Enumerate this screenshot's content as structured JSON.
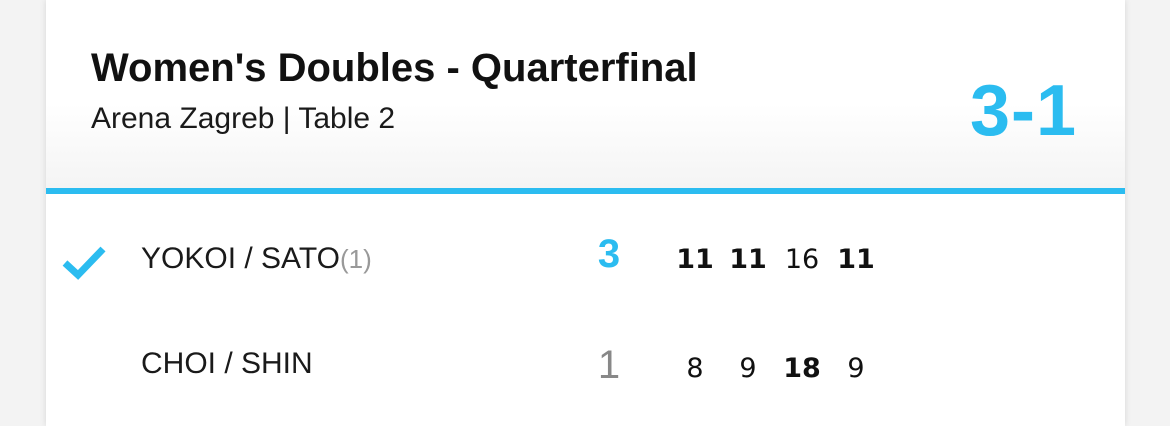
{
  "colors": {
    "accent": "#2bbcf0",
    "loser_sets": "#888888"
  },
  "header": {
    "title": "Women's Doubles - Quarterfinal",
    "subtitle": "Arena Zagreb | Table 2",
    "score": "3-1"
  },
  "teams": [
    {
      "name": "YOKOI / SATO",
      "seed": "(1)",
      "winner": true,
      "sets": "3",
      "games": [
        {
          "v": "11",
          "win": true
        },
        {
          "v": "11",
          "win": true
        },
        {
          "v": "16",
          "win": false
        },
        {
          "v": "11",
          "win": true
        }
      ]
    },
    {
      "name": "CHOI / SHIN",
      "seed": "",
      "winner": false,
      "sets": "1",
      "games": [
        {
          "v": "8",
          "win": false
        },
        {
          "v": "9",
          "win": false
        },
        {
          "v": "18",
          "win": true
        },
        {
          "v": "9",
          "win": false
        }
      ]
    }
  ]
}
